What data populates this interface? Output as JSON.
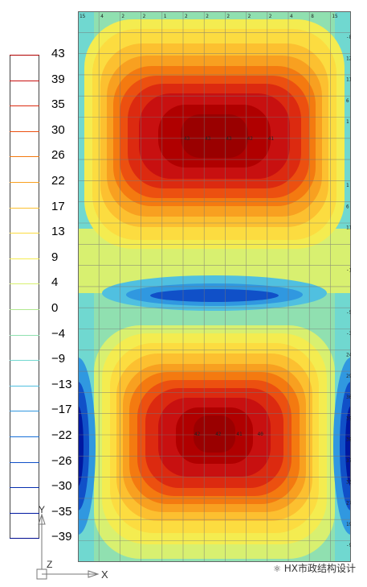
{
  "legend": {
    "values": [
      "43",
      "39",
      "35",
      "30",
      "26",
      "22",
      "17",
      "13",
      "9",
      "4",
      "0",
      "−4",
      "−9",
      "−13",
      "−17",
      "−22",
      "−26",
      "−30",
      "−35",
      "−39"
    ],
    "colors": [
      "#b00000",
      "#c81010",
      "#dc2a10",
      "#ec5010",
      "#f47a10",
      "#f8a020",
      "#fcc030",
      "#fcdc40",
      "#f4ec50",
      "#d8f070",
      "#b0e890",
      "#90e0b0",
      "#70d8d0",
      "#50c0e0",
      "#3098e0",
      "#1870d8",
      "#1050c8",
      "#0830b0",
      "#0018a0",
      "#000c90"
    ]
  },
  "axes": {
    "y": "Y",
    "z": "Z",
    "x": "X"
  },
  "contour_grid": {
    "top_edge_labels": [
      "15",
      "4",
      "2",
      "2",
      "1",
      "2",
      "2",
      "2",
      "2",
      "2",
      "4",
      "8",
      "15"
    ],
    "right_edge_labels": [
      "-8",
      "12",
      "11",
      "6",
      "1",
      "",
      "",
      "1",
      "6",
      "11",
      "",
      "-1",
      "",
      "-5",
      "-3",
      "24",
      "29",
      "36",
      "39",
      "38",
      "37",
      "33",
      "27",
      "19",
      "-9",
      "2"
    ],
    "upper_center_values": [
      "43",
      "43",
      "43",
      "42",
      "41"
    ],
    "lower_center_values": [
      "42",
      "42",
      "41",
      "40"
    ]
  },
  "watermark": "HX市政结构设计"
}
